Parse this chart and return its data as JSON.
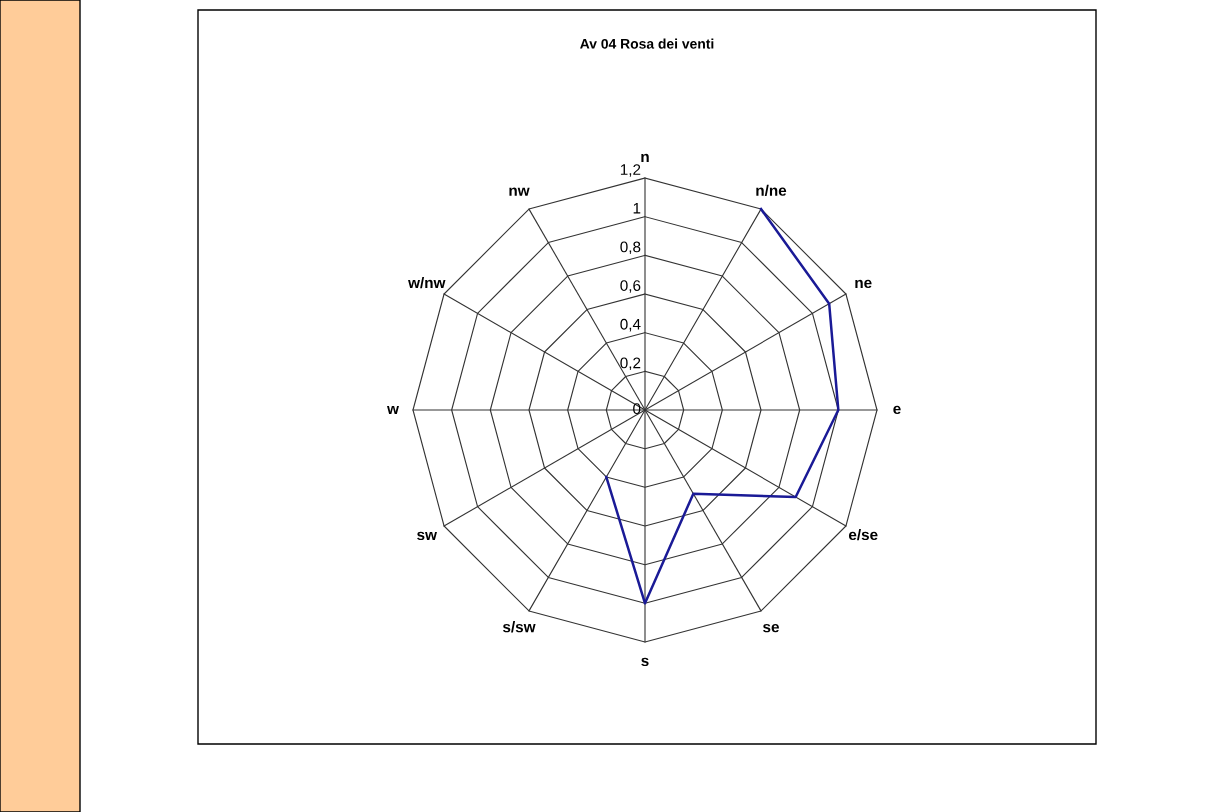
{
  "chart_data": {
    "type": "radar",
    "title": "Av 04 Rosa dei venti",
    "categories": [
      "n",
      "n/ne",
      "ne",
      "e",
      "e/se",
      "se",
      "s",
      "s/sw",
      "sw",
      "w",
      "w/nw",
      "nw"
    ],
    "series": [
      {
        "color": "#1a1a96",
        "values": [
          null,
          1.2,
          1.1,
          1.0,
          0.9,
          0.5,
          1.0,
          0.4,
          null,
          null,
          null,
          null
        ]
      }
    ],
    "ylim": [
      0,
      1.2
    ],
    "yticks": [
      0,
      {
        "value": 0.2,
        "label": "0,2"
      },
      {
        "value": 0.4,
        "label": "0,4"
      },
      {
        "value": 0.6,
        "label": "0,6"
      },
      {
        "value": 0.8,
        "label": "0,8"
      },
      1,
      {
        "value": 1.2,
        "label": "1,2"
      }
    ],
    "grid": true,
    "marker": "none"
  }
}
